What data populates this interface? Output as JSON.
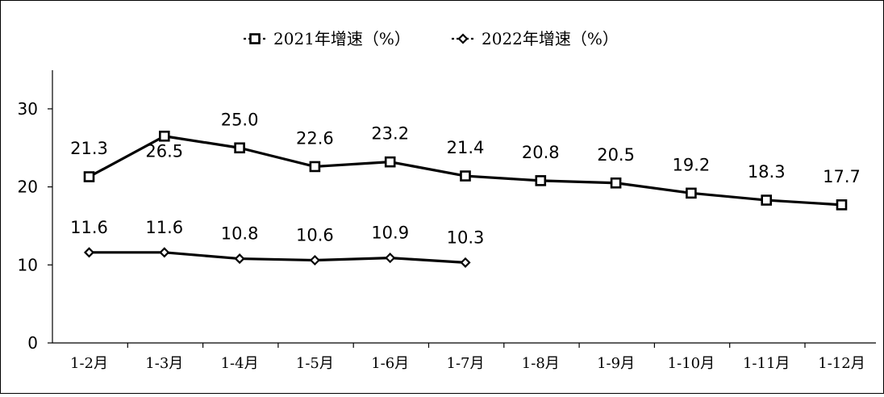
{
  "chart_data": {
    "type": "line",
    "categories": [
      "1-2月",
      "1-3月",
      "1-4月",
      "1-5月",
      "1-6月",
      "1-7月",
      "1-8月",
      "1-9月",
      "1-10月",
      "1-11月",
      "1-12月"
    ],
    "series": [
      {
        "name": "2021年增速（%）",
        "marker": "square",
        "values": [
          21.3,
          26.5,
          25.0,
          22.6,
          23.2,
          21.4,
          20.8,
          20.5,
          19.2,
          18.3,
          17.7
        ]
      },
      {
        "name": "2022年增速（%）",
        "marker": "diamond",
        "values": [
          11.6,
          11.6,
          10.8,
          10.6,
          10.9,
          10.3,
          null,
          null,
          null,
          null,
          null
        ]
      }
    ],
    "yticks": [
      0,
      10,
      20,
      30
    ],
    "ylim": [
      0,
      35
    ],
    "grid": false,
    "legend": "top-center",
    "colors": {
      "line": "#000000",
      "marker_fill": "#ffffff"
    }
  }
}
